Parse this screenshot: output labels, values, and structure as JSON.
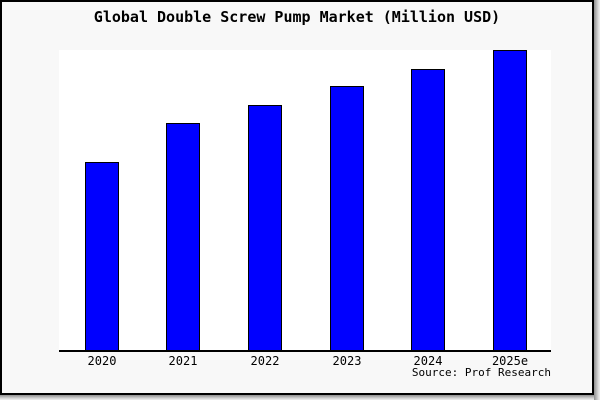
{
  "title": "Global Double Screw Pump Market (Million USD)",
  "source_credit": "Source: Prof Research",
  "chart_data": {
    "type": "bar",
    "title": "Global Double Screw Pump Market (Million USD)",
    "categories": [
      "2020",
      "2021",
      "2022",
      "2023",
      "2024",
      "2025e"
    ],
    "values": [
      62.8,
      75.5,
      81.8,
      88.0,
      93.8,
      100.0
    ],
    "value_scale_note": "y-axis has no tick labels; values are relative bar heights as % of the tallest (2025e) bar",
    "xlabel": "",
    "ylabel": "",
    "legend": false,
    "grid": false,
    "annotations": [
      "Source: Prof Research"
    ],
    "colors": {
      "bar_fill": "#0000ff",
      "bar_edge": "#000000",
      "plot_background": "#ffffff",
      "page_background": "#f8f8f8",
      "axis": "#000000",
      "text": "#000000"
    }
  }
}
